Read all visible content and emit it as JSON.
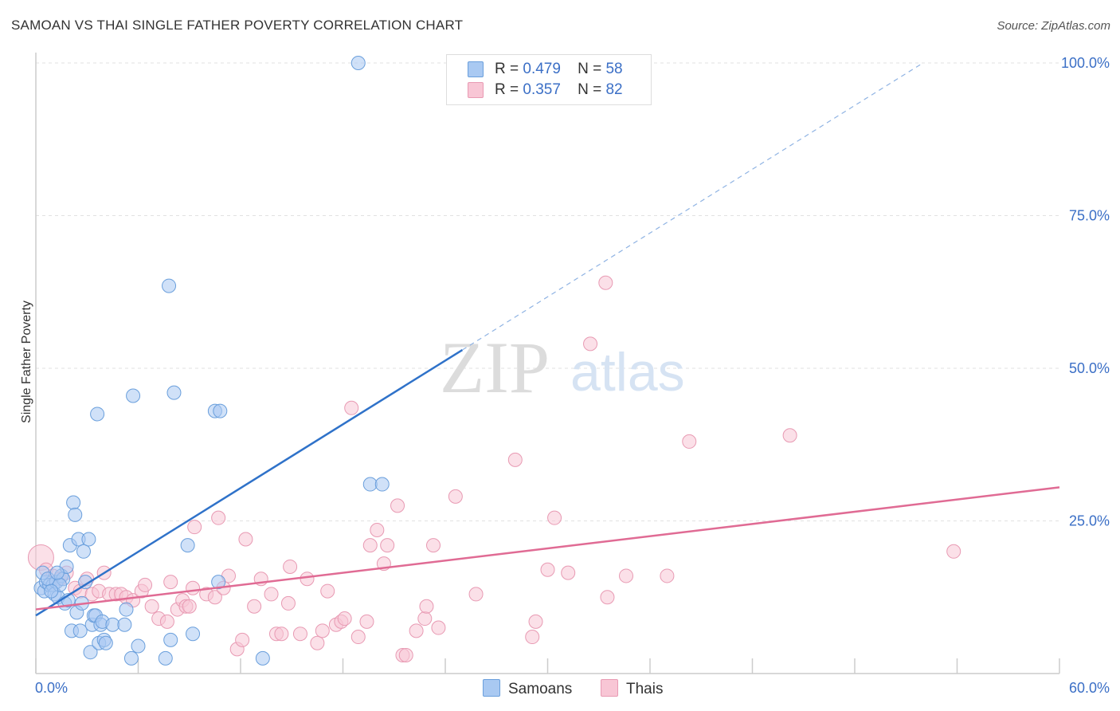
{
  "title": "SAMOAN VS THAI SINGLE FATHER POVERTY CORRELATION CHART",
  "source": "Source: ZipAtlas.com",
  "watermark": {
    "zip": "ZIP",
    "atlas": "atlas"
  },
  "legend": {
    "rows": [
      {
        "r_label": "R =",
        "r_value": "0.479",
        "n_label": "N =",
        "n_value": "58",
        "color": "#a9c9f2",
        "border": "#6a9fdc"
      },
      {
        "r_label": "R =",
        "r_value": "0.357",
        "n_label": "N =",
        "n_value": "82",
        "color": "#f8c6d5",
        "border": "#e89ab3"
      }
    ]
  },
  "bottom_legend": [
    {
      "label": "Samoans",
      "color": "#a9c9f2",
      "border": "#6a9fdc"
    },
    {
      "label": "Thais",
      "color": "#f8c6d5",
      "border": "#e89ab3"
    }
  ],
  "chart_data": {
    "type": "scatter",
    "title": "SAMOAN VS THAI SINGLE FATHER POVERTY CORRELATION CHART",
    "xlabel": "",
    "ylabel": "Single Father Poverty",
    "xlim": [
      0,
      60
    ],
    "ylim": [
      0,
      100
    ],
    "x_tick_labels": [
      "0.0%",
      "60.0%"
    ],
    "y_tick_labels": [
      "25.0%",
      "50.0%",
      "75.0%",
      "100.0%"
    ],
    "y_ticks": [
      25,
      50,
      75,
      100
    ],
    "grid": true,
    "legend_position": "top-center",
    "series": [
      {
        "name": "Samoans",
        "color": "#6a9fdc",
        "fill": "#a9c9f2",
        "trend": {
          "x": [
            0,
            25
          ],
          "y": [
            9.5,
            53
          ],
          "dashed_to": [
            52,
            100
          ]
        },
        "points": [
          [
            0.3,
            14
          ],
          [
            0.5,
            13.5
          ],
          [
            0.6,
            15
          ],
          [
            0.8,
            14.5
          ],
          [
            1.0,
            14.5
          ],
          [
            1.2,
            15
          ],
          [
            1.1,
            13
          ],
          [
            1.3,
            12.5
          ],
          [
            1.5,
            16
          ],
          [
            1.6,
            15.5
          ],
          [
            1.7,
            11.5
          ],
          [
            1.8,
            17.5
          ],
          [
            1.9,
            12
          ],
          [
            2.0,
            21
          ],
          [
            2.1,
            7
          ],
          [
            2.2,
            28
          ],
          [
            2.3,
            26
          ],
          [
            2.4,
            10
          ],
          [
            2.5,
            22
          ],
          [
            2.6,
            7
          ],
          [
            2.7,
            11.5
          ],
          [
            2.8,
            20
          ],
          [
            3.1,
            22
          ],
          [
            3.2,
            3.5
          ],
          [
            3.3,
            8
          ],
          [
            3.4,
            9.5
          ],
          [
            3.5,
            9.5
          ],
          [
            3.6,
            42.5
          ],
          [
            3.7,
            5
          ],
          [
            3.8,
            8
          ],
          [
            3.9,
            8.5
          ],
          [
            4.0,
            5.5
          ],
          [
            4.1,
            5
          ],
          [
            4.5,
            8
          ],
          [
            5.2,
            8
          ],
          [
            5.3,
            10.5
          ],
          [
            5.6,
            2.5
          ],
          [
            5.7,
            45.5
          ],
          [
            6.0,
            4.5
          ],
          [
            7.6,
            2.5
          ],
          [
            7.8,
            63.5
          ],
          [
            7.9,
            5.5
          ],
          [
            8.1,
            46
          ],
          [
            8.9,
            21
          ],
          [
            9.2,
            6.5
          ],
          [
            10.5,
            43
          ],
          [
            10.8,
            43
          ],
          [
            10.7,
            15
          ],
          [
            13.3,
            2.5
          ],
          [
            18.9,
            100
          ],
          [
            19.6,
            31
          ],
          [
            20.3,
            31
          ],
          [
            0.4,
            16.5
          ],
          [
            0.7,
            15.5
          ],
          [
            1.4,
            14.5
          ],
          [
            0.9,
            13.5
          ],
          [
            2.9,
            15
          ],
          [
            1.25,
            16.5
          ]
        ]
      },
      {
        "name": "Thais",
        "color": "#e89ab3",
        "fill": "#f8c6d5",
        "trend": {
          "x": [
            0,
            60
          ],
          "y": [
            10.5,
            30.5
          ]
        },
        "points": [
          [
            0.3,
            19
          ],
          [
            0.6,
            17
          ],
          [
            1.0,
            16
          ],
          [
            1.4,
            15.5
          ],
          [
            1.8,
            16.5
          ],
          [
            2.3,
            14
          ],
          [
            2.6,
            13.5
          ],
          [
            3.0,
            15.5
          ],
          [
            3.3,
            13
          ],
          [
            3.7,
            13.5
          ],
          [
            4.0,
            16.5
          ],
          [
            4.3,
            13
          ],
          [
            4.7,
            13
          ],
          [
            5.0,
            13
          ],
          [
            5.3,
            12.5
          ],
          [
            5.7,
            12
          ],
          [
            6.2,
            13.5
          ],
          [
            6.4,
            14.5
          ],
          [
            6.8,
            11
          ],
          [
            7.2,
            9
          ],
          [
            7.7,
            8.5
          ],
          [
            7.9,
            15
          ],
          [
            8.3,
            10.5
          ],
          [
            8.6,
            12
          ],
          [
            8.8,
            11
          ],
          [
            9.0,
            11
          ],
          [
            9.2,
            14
          ],
          [
            9.3,
            24
          ],
          [
            10.0,
            13
          ],
          [
            10.5,
            12.5
          ],
          [
            10.7,
            25.5
          ],
          [
            11.0,
            14
          ],
          [
            11.3,
            16
          ],
          [
            11.8,
            4
          ],
          [
            12.1,
            5.5
          ],
          [
            12.3,
            22
          ],
          [
            12.8,
            11
          ],
          [
            13.2,
            15.5
          ],
          [
            13.8,
            13
          ],
          [
            14.1,
            6.5
          ],
          [
            14.4,
            6.5
          ],
          [
            14.8,
            11.5
          ],
          [
            14.9,
            17.5
          ],
          [
            15.5,
            6.5
          ],
          [
            15.9,
            15.5
          ],
          [
            16.5,
            5
          ],
          [
            16.8,
            7
          ],
          [
            17.1,
            13.5
          ],
          [
            17.6,
            8
          ],
          [
            17.9,
            8.5
          ],
          [
            18.1,
            9
          ],
          [
            18.5,
            43.5
          ],
          [
            18.9,
            6
          ],
          [
            19.4,
            8.5
          ],
          [
            19.6,
            21
          ],
          [
            20.0,
            23.5
          ],
          [
            20.4,
            18
          ],
          [
            20.6,
            21
          ],
          [
            21.2,
            27.5
          ],
          [
            21.5,
            3
          ],
          [
            21.7,
            3
          ],
          [
            22.3,
            7
          ],
          [
            22.8,
            9
          ],
          [
            22.9,
            11
          ],
          [
            23.3,
            21
          ],
          [
            23.6,
            7.5
          ],
          [
            24.6,
            29
          ],
          [
            25.8,
            13
          ],
          [
            28.1,
            35
          ],
          [
            29.1,
            6
          ],
          [
            29.3,
            8.5
          ],
          [
            30.0,
            17
          ],
          [
            30.4,
            25.5
          ],
          [
            31.2,
            16.5
          ],
          [
            32.5,
            54
          ],
          [
            33.4,
            64
          ],
          [
            33.5,
            12.5
          ],
          [
            34.6,
            16
          ],
          [
            37.0,
            16
          ],
          [
            38.3,
            38
          ],
          [
            44.2,
            39
          ],
          [
            53.8,
            20
          ]
        ]
      }
    ]
  }
}
